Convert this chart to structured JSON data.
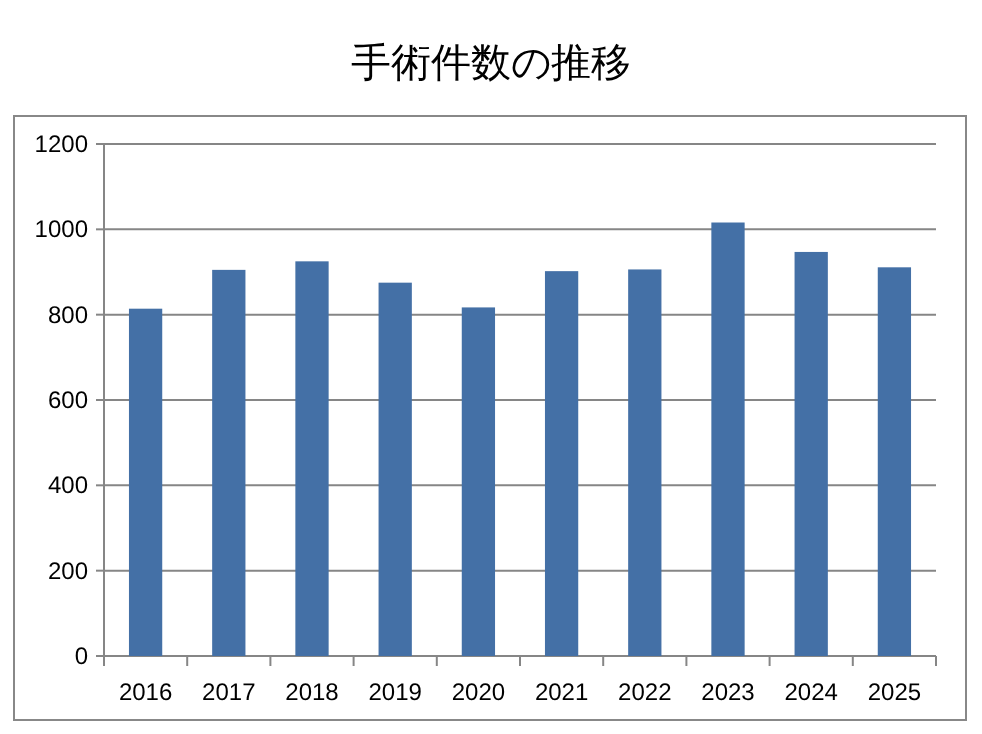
{
  "chart_data": {
    "type": "bar",
    "title": "手術件数の推移",
    "categories": [
      "2016",
      "2017",
      "2018",
      "2019",
      "2020",
      "2021",
      "2022",
      "2023",
      "2024",
      "2025"
    ],
    "values": [
      814,
      905,
      925,
      875,
      817,
      902,
      906,
      1016,
      947,
      911
    ],
    "color": "#4470a6",
    "ylim": [
      0,
      1200
    ],
    "yticks": [
      0,
      200,
      400,
      600,
      800,
      1000,
      1200
    ],
    "grid": "y"
  }
}
